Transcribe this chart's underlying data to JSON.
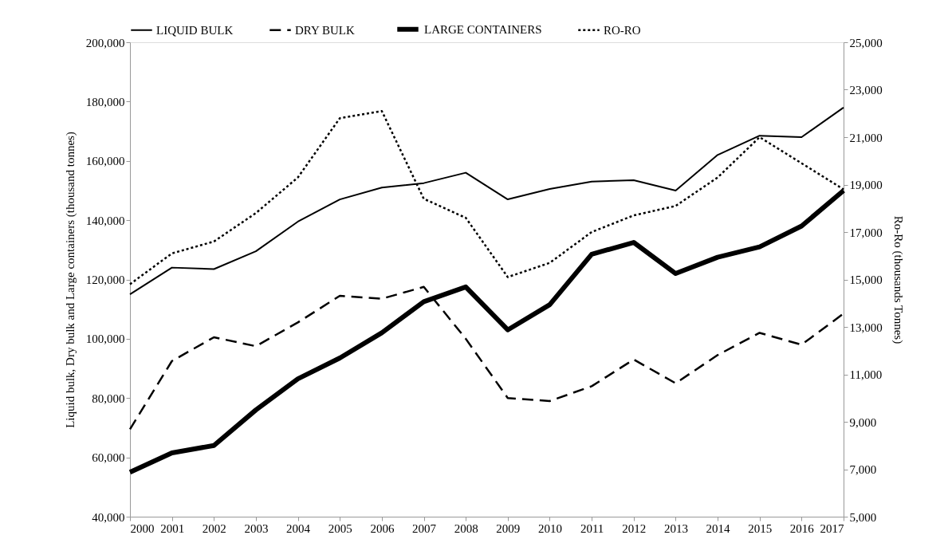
{
  "chart_data": {
    "type": "line",
    "categories": [
      "2000",
      "2001",
      "2002",
      "2003",
      "2004",
      "2005",
      "2006",
      "2007",
      "2008",
      "2009",
      "2010",
      "2011",
      "2012",
      "2013",
      "2014",
      "2015",
      "2016",
      "2017"
    ],
    "ylabel": "Liquid bulk, Dry bulk and Large containers (thousand tonnes)",
    "y2label": "Ro-Ro (thousands Tonnes)",
    "ylim": [
      40000,
      200000
    ],
    "yticks": [
      {
        "value": 40000,
        "label": "40,000"
      },
      {
        "value": 60000,
        "label": "60,000"
      },
      {
        "value": 80000,
        "label": "80,000"
      },
      {
        "value": 100000,
        "label": "100,000"
      },
      {
        "value": 120000,
        "label": "120,000"
      },
      {
        "value": 140000,
        "label": "140,000"
      },
      {
        "value": 160000,
        "label": "160,000"
      },
      {
        "value": 180000,
        "label": "180,000"
      },
      {
        "value": 200000,
        "label": "200,000"
      }
    ],
    "y2lim": [
      5000,
      25000
    ],
    "y2ticks": [
      {
        "value": 5000,
        "label": "5,000"
      },
      {
        "value": 7000,
        "label": "7,000"
      },
      {
        "value": 9000,
        "label": "9,000"
      },
      {
        "value": 11000,
        "label": "11,000"
      },
      {
        "value": 13000,
        "label": "13,000"
      },
      {
        "value": 15000,
        "label": "15,000"
      },
      {
        "value": 17000,
        "label": "17,000"
      },
      {
        "value": 19000,
        "label": "19,000"
      },
      {
        "value": 21000,
        "label": "21,000"
      },
      {
        "value": 23000,
        "label": "23,000"
      },
      {
        "value": 25000,
        "label": "25,000"
      }
    ],
    "grid": false,
    "legend": "top",
    "marker": "none",
    "series": [
      {
        "name": "LIQUID BULK",
        "color": "#000000",
        "line_style": "solid",
        "values": [
          115000,
          124000,
          123500,
          129500,
          139500,
          147000,
          151000,
          152500,
          156000,
          147000,
          150500,
          153000,
          153500,
          150000,
          162000,
          168500,
          168000,
          178000
        ]
      },
      {
        "name": "DRY BULK",
        "color": "#000000",
        "line_style": "dashed",
        "values": [
          69500,
          92500,
          100500,
          97500,
          105500,
          114500,
          113500,
          117500,
          100000,
          80000,
          79000,
          84000,
          93000,
          85000,
          94500,
          102000,
          98000,
          108500
        ]
      },
      {
        "name": "LARGE CONTAINERS",
        "color": "#000000",
        "line_style": "solid",
        "values": [
          55000,
          61500,
          64000,
          76000,
          86500,
          93500,
          102000,
          112500,
          117500,
          103000,
          111500,
          128500,
          132500,
          122000,
          127500,
          131000,
          138000,
          150000
        ]
      },
      {
        "name": "RO-RO",
        "color": "#000000",
        "line_style": "dotted",
        "axis": "y2",
        "values": [
          14800,
          16100,
          16600,
          17800,
          19300,
          21800,
          22100,
          18400,
          17600,
          15100,
          15700,
          17000,
          17700,
          18100,
          19300,
          21000,
          19900,
          18800
        ]
      }
    ]
  }
}
